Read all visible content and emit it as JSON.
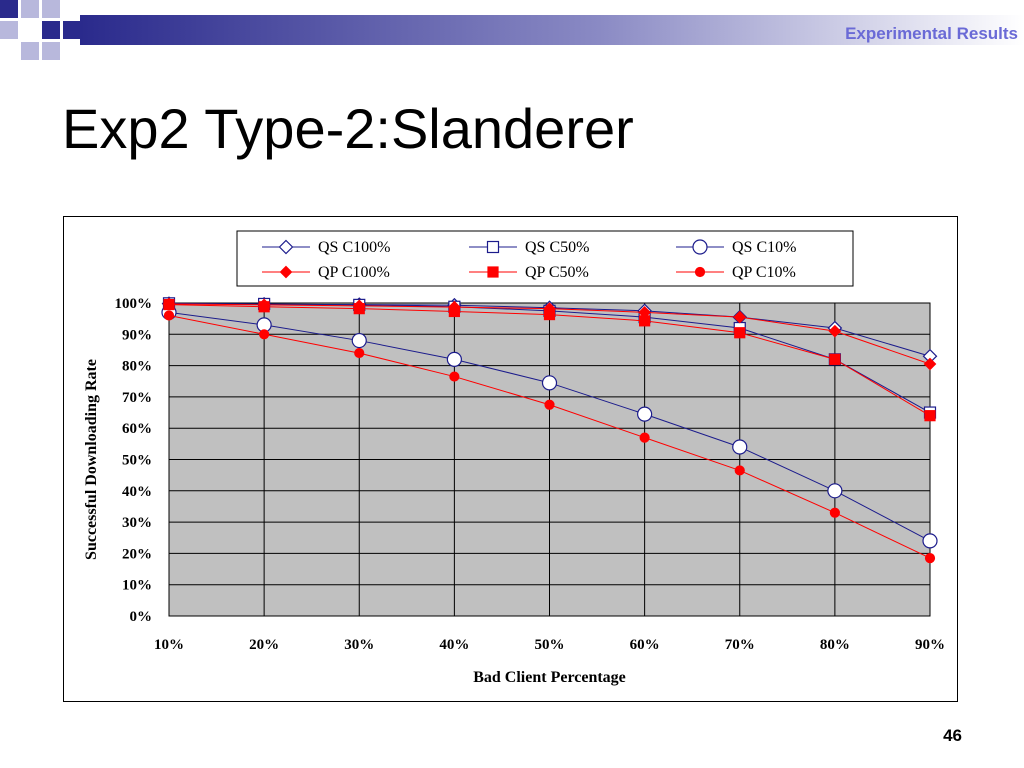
{
  "header": {
    "section_label": "Experimental Results",
    "title": "Exp2 Type-2:Slanderer"
  },
  "footer": {
    "page_number": "46"
  },
  "colors": {
    "qs_series": "#1c1c8c",
    "qp_series": "#ff0000",
    "plot_background": "#c0c0c0",
    "section_label": "#6a6ad6",
    "deco_blue": "#2a2a8c",
    "deco_light": "#b8b8dc"
  },
  "chart_data": {
    "type": "line",
    "xlabel": "Bad Client Percentage",
    "ylabel": "Successful Downloading Rate",
    "x": [
      "10%",
      "20%",
      "30%",
      "40%",
      "50%",
      "60%",
      "70%",
      "80%",
      "90%"
    ],
    "y_ticks": [
      "0%",
      "10%",
      "20%",
      "30%",
      "40%",
      "50%",
      "60%",
      "70%",
      "80%",
      "90%",
      "100%"
    ],
    "ylim": [
      0,
      100
    ],
    "grid": true,
    "legend_position": "top",
    "series": [
      {
        "name": "QS C100%",
        "marker": "diamond",
        "filled": false,
        "color": "#1c1c8c",
        "values": [
          99.8,
          99.6,
          99.5,
          99.3,
          98.5,
          97.5,
          95.5,
          92,
          83
        ]
      },
      {
        "name": "QS C50%",
        "marker": "square",
        "filled": false,
        "color": "#1c1c8c",
        "values": [
          99.9,
          99.7,
          99.4,
          98.8,
          97.5,
          95.5,
          92,
          82,
          65
        ]
      },
      {
        "name": "QS C10%",
        "marker": "circle",
        "filled": false,
        "color": "#1c1c8c",
        "values": [
          97,
          93,
          88,
          82,
          74.5,
          64.5,
          54,
          40,
          24
        ]
      },
      {
        "name": "QP C100%",
        "marker": "diamond",
        "filled": true,
        "color": "#ff0000",
        "values": [
          99.7,
          99.4,
          99.1,
          98.7,
          98.2,
          97,
          95.5,
          91,
          80.5
        ]
      },
      {
        "name": "QP C50%",
        "marker": "square",
        "filled": true,
        "color": "#ff0000",
        "values": [
          99.5,
          98.8,
          98.2,
          97.3,
          96.3,
          94.3,
          90.5,
          82,
          64
        ]
      },
      {
        "name": "QP C10%",
        "marker": "circle",
        "filled": true,
        "color": "#ff0000",
        "values": [
          96,
          90,
          84,
          76.5,
          67.5,
          57,
          46.5,
          33,
          18.5
        ]
      }
    ]
  }
}
